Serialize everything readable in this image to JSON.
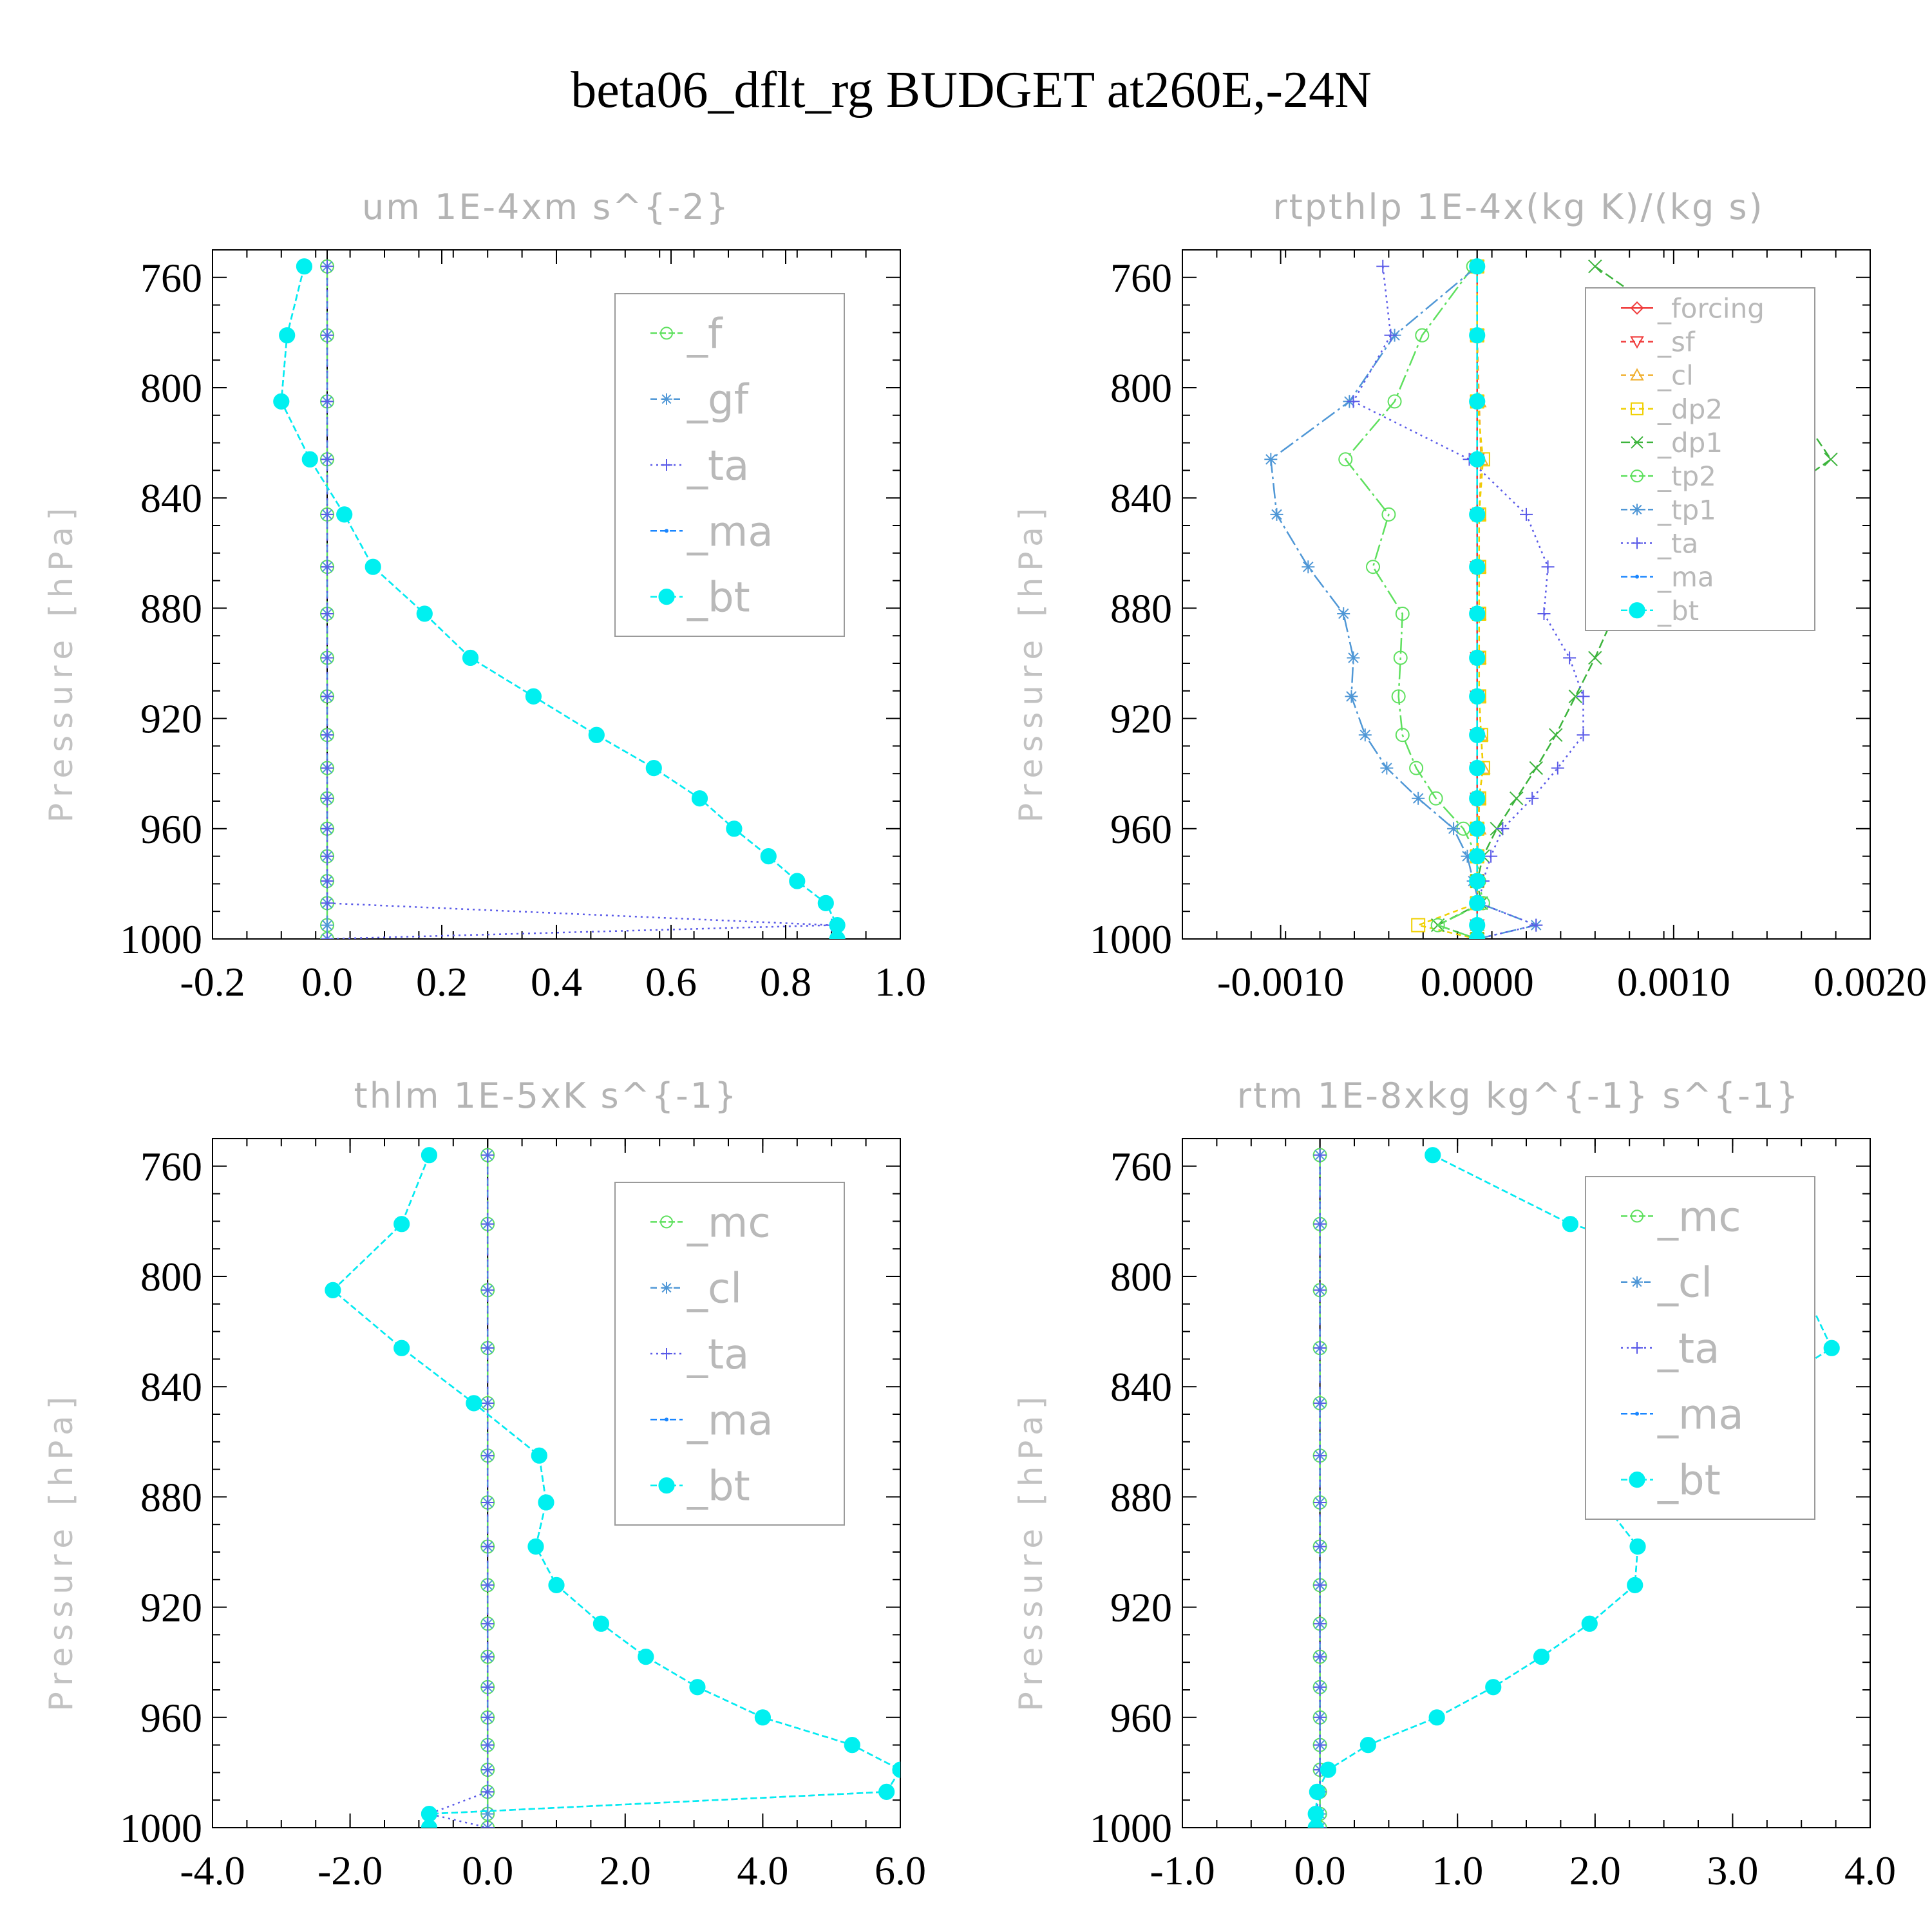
{
  "title": "beta06_dflt_rg  BUDGET at260E,-24N",
  "colors": {
    "f": "#5ee05e",
    "gf": "#4f97d6",
    "ta": "#5a5ae8",
    "ma": "#1a86ff",
    "bt": "#00f0f0",
    "mc": "#5ee05e",
    "cl": "#4f97d6",
    "forcing": "#f03c3c",
    "sf": "#f03c3c",
    "cl_rtp": "#f0b030",
    "dp2": "#f0d000",
    "dp1": "#3cb43c",
    "tp2": "#5ee05e",
    "tp1": "#4f97d6",
    "zero": "#000000"
  },
  "chart_data": [
    {
      "type": "line",
      "title": "um   1E-4xm s^{-2}",
      "ylabel": "Pressure [hPa]",
      "xlim": [
        -0.2,
        1.0
      ],
      "ylim": [
        750,
        1000
      ],
      "xticks": [
        -0.2,
        0.0,
        0.2,
        0.4,
        0.6,
        0.8,
        1.0
      ],
      "xtick_labels": [
        "-0.2",
        "0.0",
        "0.2",
        "0.4",
        "0.6",
        "0.8",
        "1.0"
      ],
      "yticks": [
        760,
        800,
        840,
        880,
        920,
        960,
        1000
      ],
      "ytick_labels": [
        "760",
        "800",
        "840",
        "880",
        "920",
        "960",
        "1000"
      ],
      "legend_position": "top-right",
      "legend_font": 64,
      "legend": [
        "_f",
        "_gf",
        "_ta",
        "_ma",
        "_bt"
      ],
      "pressure": [
        756,
        781,
        805,
        826,
        846,
        865,
        882,
        898,
        912,
        926,
        938,
        949,
        960,
        970,
        979,
        987,
        995,
        1000
      ],
      "series": [
        {
          "key": "f",
          "name": "_f",
          "marker": "circle",
          "dash": "24,6,4,6",
          "values": [
            0,
            0,
            0,
            0,
            0,
            0,
            0,
            0,
            0,
            0,
            0,
            0,
            0,
            0,
            0,
            0,
            0,
            0
          ]
        },
        {
          "key": "gf",
          "name": "_gf",
          "marker": "star",
          "dash": "10,8",
          "values": [
            0,
            0,
            0,
            0,
            0,
            0,
            0,
            0,
            0,
            0,
            0,
            0,
            0,
            0,
            0,
            0,
            0,
            0
          ]
        },
        {
          "key": "ta",
          "name": "_ta",
          "marker": "plus",
          "dash": "3,6",
          "values": [
            0,
            0,
            0,
            0,
            0,
            0,
            0,
            0,
            0,
            0,
            0,
            0,
            0,
            0,
            0,
            0,
            0.88,
            0
          ]
        },
        {
          "key": "ma",
          "name": "_ma",
          "marker": "dot",
          "dash": "10,5",
          "values": [
            -0.04,
            -0.07,
            -0.08,
            -0.03,
            0.03,
            0.08,
            0.17,
            0.25,
            0.36,
            0.47,
            0.57,
            0.65,
            0.71,
            0.77,
            0.82,
            0.87,
            0.89,
            0.89
          ]
        },
        {
          "key": "bt",
          "name": "_bt",
          "marker": "filled",
          "dash": "10,5",
          "values": [
            -0.04,
            -0.07,
            -0.08,
            -0.03,
            0.03,
            0.08,
            0.17,
            0.25,
            0.36,
            0.47,
            0.57,
            0.65,
            0.71,
            0.77,
            0.82,
            0.87,
            0.89,
            0.89
          ]
        }
      ]
    },
    {
      "type": "line",
      "title": "rtpthlp   1E-4x(kg K)/(kg s)",
      "ylabel": "Pressure [hPa]",
      "xlim": [
        -0.0015,
        0.002
      ],
      "ylim": [
        750,
        1000
      ],
      "xticks": [
        -0.001,
        0.0,
        0.001,
        0.002
      ],
      "xtick_labels": [
        "-0.0010",
        "0.0000",
        "0.0010",
        "0.0020"
      ],
      "yticks": [
        760,
        800,
        840,
        880,
        920,
        960,
        1000
      ],
      "ytick_labels": [
        "760",
        "800",
        "840",
        "880",
        "920",
        "960",
        "1000"
      ],
      "legend_position": "top-right",
      "legend_font": 42,
      "legend": [
        "_forcing",
        "_sf",
        "_cl",
        "_dp2",
        "_dp1",
        "_tp2",
        "_tp1",
        "_ta",
        "_ma",
        "_bt"
      ],
      "pressure": [
        756,
        781,
        805,
        826,
        846,
        865,
        882,
        898,
        912,
        926,
        938,
        949,
        960,
        970,
        979,
        987,
        995,
        1000
      ],
      "series": [
        {
          "key": "forcing",
          "name": "_forcing",
          "marker": "diamond",
          "dash": "none",
          "values": [
            0,
            0,
            0,
            0,
            0,
            0,
            0,
            0,
            0,
            0,
            0,
            0,
            0,
            0,
            0,
            0,
            0,
            0
          ]
        },
        {
          "key": "sf",
          "name": "_sf",
          "marker": "tri-down",
          "dash": "8,6",
          "values": [
            0,
            0,
            0,
            0,
            0,
            0,
            0,
            0,
            0,
            0,
            0,
            0,
            0,
            0,
            0,
            0,
            0,
            0
          ]
        },
        {
          "key": "cl_rtp",
          "name": "_cl",
          "marker": "tri-up",
          "dash": "8,6",
          "values": [
            0,
            0,
            1e-05,
            2e-05,
            1e-05,
            1e-05,
            1e-05,
            1e-05,
            1e-05,
            2e-05,
            3e-05,
            1e-05,
            1e-05,
            0,
            0,
            0,
            0,
            0
          ]
        },
        {
          "key": "dp2",
          "name": "_dp2",
          "marker": "square",
          "dash": "8,6",
          "values": [
            0,
            0,
            0,
            3e-05,
            1e-05,
            1e-05,
            1e-05,
            1e-05,
            1e-05,
            2e-05,
            3e-05,
            1e-05,
            0,
            0,
            0,
            0,
            -0.0003,
            0
          ]
        },
        {
          "key": "dp1",
          "name": "_dp1",
          "marker": "x",
          "dash": "14,6",
          "values": [
            0.0006,
            0.0011,
            0.0016,
            0.0018,
            0.0014,
            0.0009,
            0.0007,
            0.0006,
            0.0005,
            0.0004,
            0.0003,
            0.0002,
            0.0001,
            3e-05,
            0,
            2e-05,
            -0.0002,
            0
          ]
        },
        {
          "key": "tp2",
          "name": "_tp2",
          "marker": "circle",
          "dash": "24,6,4,6",
          "values": [
            -2e-05,
            -0.00028,
            -0.00042,
            -0.00067,
            -0.00045,
            -0.00053,
            -0.00038,
            -0.00039,
            -0.0004,
            -0.00038,
            -0.00031,
            -0.00021,
            -7e-05,
            0,
            1e-05,
            3e-05,
            -0.0002,
            0
          ]
        },
        {
          "key": "tp1",
          "name": "_tp1",
          "marker": "star",
          "dash": "24,6,4,6",
          "values": [
            0,
            -0.00042,
            -0.00065,
            -0.00105,
            -0.00102,
            -0.00086,
            -0.00068,
            -0.00063,
            -0.00064,
            -0.00057,
            -0.00046,
            -0.0003,
            -0.00012,
            -5e-05,
            -2e-05,
            1e-05,
            0.0003,
            0
          ]
        },
        {
          "key": "ta",
          "name": "_ta",
          "marker": "plus",
          "dash": "3,6",
          "values": [
            -0.00048,
            -0.00044,
            -0.00063,
            -4e-05,
            0.00025,
            0.00036,
            0.00034,
            0.00047,
            0.00054,
            0.00054,
            0.00041,
            0.00028,
            0.00013,
            7e-05,
            3e-05,
            1e-05,
            0.0003,
            0
          ]
        },
        {
          "key": "ma",
          "name": "_ma",
          "marker": "dot",
          "dash": "10,5",
          "values": [
            0,
            0,
            0,
            0,
            0,
            0,
            0,
            0,
            0,
            0,
            0,
            0,
            0,
            0,
            0,
            0,
            0,
            0
          ]
        },
        {
          "key": "bt",
          "name": "_bt",
          "marker": "filled",
          "dash": "10,5",
          "values": [
            0,
            0,
            0,
            0,
            0,
            0,
            0,
            0,
            0,
            0,
            0,
            0,
            0,
            0,
            0,
            0,
            0,
            0
          ]
        }
      ]
    },
    {
      "type": "line",
      "title": "thlm   1E-5xK s^{-1}",
      "ylabel": "Pressure [hPa]",
      "xlim": [
        -4.0,
        6.0
      ],
      "ylim": [
        750,
        1000
      ],
      "xticks": [
        -4,
        -2,
        0,
        2,
        4,
        6
      ],
      "xtick_labels": [
        "-4.0",
        "-2.0",
        "0.0",
        "2.0",
        "4.0",
        "6.0"
      ],
      "yticks": [
        760,
        800,
        840,
        880,
        920,
        960,
        1000
      ],
      "ytick_labels": [
        "760",
        "800",
        "840",
        "880",
        "920",
        "960",
        "1000"
      ],
      "legend_position": "top-right",
      "legend_font": 64,
      "legend": [
        "_mc",
        "_cl",
        "_ta",
        "_ma",
        "_bt"
      ],
      "pressure": [
        756,
        781,
        805,
        826,
        846,
        865,
        882,
        898,
        912,
        926,
        938,
        949,
        960,
        970,
        979,
        987,
        995,
        1000
      ],
      "series": [
        {
          "key": "mc",
          "name": "_mc",
          "marker": "circle",
          "dash": "24,6,4,6",
          "values": [
            0,
            0,
            0,
            0,
            0,
            0,
            0,
            0,
            0,
            0,
            0,
            0,
            0,
            0,
            0,
            0,
            0,
            0
          ]
        },
        {
          "key": "cl",
          "name": "_cl",
          "marker": "star",
          "dash": "10,8",
          "values": [
            0,
            0,
            0,
            0,
            0,
            0,
            0,
            0,
            0,
            0,
            0,
            0,
            0,
            0,
            0,
            0,
            0,
            0
          ]
        },
        {
          "key": "ta",
          "name": "_ta",
          "marker": "plus",
          "dash": "3,6",
          "values": [
            0,
            0,
            0,
            0,
            0,
            0,
            0,
            0,
            0,
            0,
            0,
            0,
            0,
            0,
            0,
            0,
            -0.85,
            0
          ]
        },
        {
          "key": "ma",
          "name": "_ma",
          "marker": "dot",
          "dash": "10,5",
          "values": [
            -0.85,
            -1.25,
            -2.25,
            -1.25,
            -0.2,
            0.75,
            0.85,
            0.7,
            1.0,
            1.65,
            2.3,
            3.05,
            4.0,
            5.3,
            6.0,
            5.8,
            -0.85,
            -0.85
          ]
        },
        {
          "key": "bt",
          "name": "_bt",
          "marker": "filled",
          "dash": "10,5",
          "values": [
            -0.85,
            -1.25,
            -2.25,
            -1.25,
            -0.2,
            0.75,
            0.85,
            0.7,
            1.0,
            1.65,
            2.3,
            3.05,
            4.0,
            5.3,
            6.0,
            5.8,
            -0.85,
            -0.85
          ]
        }
      ]
    },
    {
      "type": "line",
      "title": "rtm   1E-8xkg kg^{-1} s^{-1}",
      "ylabel": "Pressure [hPa]",
      "xlim": [
        -1.0,
        4.0
      ],
      "ylim": [
        750,
        1000
      ],
      "xticks": [
        -1,
        0,
        1,
        2,
        3,
        4
      ],
      "xtick_labels": [
        "-1.0",
        "0.0",
        "1.0",
        "2.0",
        "3.0",
        "4.0"
      ],
      "yticks": [
        760,
        800,
        840,
        880,
        920,
        960,
        1000
      ],
      "ytick_labels": [
        "760",
        "800",
        "840",
        "880",
        "920",
        "960",
        "1000"
      ],
      "legend_position": "top-right",
      "legend_font": 64,
      "legend": [
        "_mc",
        "_cl",
        "_ta",
        "_ma",
        "_bt"
      ],
      "pressure": [
        756,
        781,
        805,
        826,
        846,
        865,
        882,
        898,
        912,
        926,
        938,
        949,
        960,
        970,
        979,
        987,
        995,
        1000
      ],
      "series": [
        {
          "key": "mc",
          "name": "_mc",
          "marker": "circle",
          "dash": "24,6,4,6",
          "values": [
            0,
            0,
            0,
            0,
            0,
            0,
            0,
            0,
            0,
            0,
            0,
            0,
            0,
            0,
            0,
            0,
            0,
            0
          ]
        },
        {
          "key": "cl",
          "name": "_cl",
          "marker": "star",
          "dash": "10,8",
          "values": [
            0,
            0,
            0,
            0,
            0,
            0,
            0,
            0,
            0,
            0,
            0,
            0,
            0,
            0,
            0,
            0,
            0,
            0
          ]
        },
        {
          "key": "ta",
          "name": "_ta",
          "marker": "plus",
          "dash": "3,6",
          "values": [
            0,
            0,
            0,
            0,
            0,
            0,
            0,
            0,
            0,
            0,
            0,
            0,
            0,
            0,
            0,
            0,
            -0.03,
            0
          ]
        },
        {
          "key": "ma",
          "name": "_ma",
          "marker": "dot",
          "dash": "10,5",
          "values": [
            0.82,
            1.82,
            3.52,
            3.72,
            3.08,
            2.22,
            2.06,
            2.31,
            2.29,
            1.96,
            1.61,
            1.26,
            0.85,
            0.35,
            0.06,
            -0.02,
            -0.03,
            -0.03
          ]
        },
        {
          "key": "bt",
          "name": "_bt",
          "marker": "filled",
          "dash": "10,5",
          "values": [
            0.82,
            1.82,
            3.52,
            3.72,
            3.08,
            2.22,
            2.06,
            2.31,
            2.29,
            1.96,
            1.61,
            1.26,
            0.85,
            0.35,
            0.06,
            -0.02,
            -0.03,
            -0.03
          ]
        }
      ]
    }
  ]
}
